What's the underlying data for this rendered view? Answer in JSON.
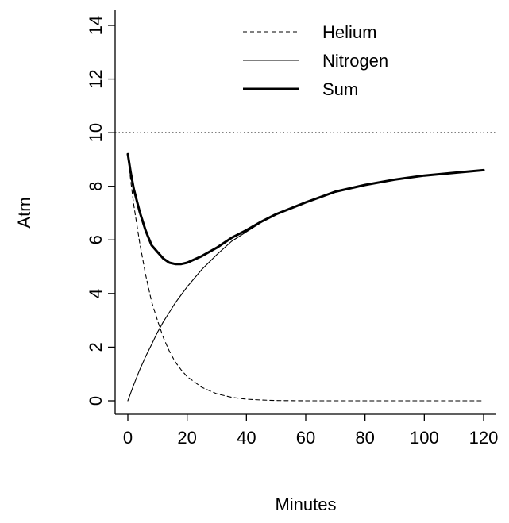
{
  "chart_data": {
    "type": "line",
    "title": "",
    "xlabel": "Minutes",
    "ylabel": "Atm",
    "xlim": [
      0,
      120
    ],
    "ylim": [
      0,
      14
    ],
    "x_ticks": [
      0,
      20,
      40,
      60,
      80,
      100,
      120
    ],
    "y_ticks": [
      0,
      2,
      4,
      6,
      8,
      10,
      12,
      14
    ],
    "grid": false,
    "legend_position": "top-right",
    "reference_lines": [
      {
        "axis": "y",
        "value": 10,
        "style": "dotted"
      }
    ],
    "x": [
      0,
      1,
      2,
      4,
      6,
      8,
      10,
      12,
      14,
      16,
      18,
      20,
      25,
      30,
      35,
      40,
      45,
      50,
      60,
      70,
      80,
      90,
      100,
      110,
      120
    ],
    "series": [
      {
        "name": "Helium",
        "style": "dashed",
        "values": [
          9.2,
          8.2,
          7.3,
          5.9,
          4.7,
          3.7,
          3.0,
          2.35,
          1.85,
          1.45,
          1.15,
          0.9,
          0.5,
          0.26,
          0.13,
          0.06,
          0.03,
          0.01,
          0.0,
          0.0,
          0.0,
          0.0,
          0.0,
          0.0,
          0.0
        ]
      },
      {
        "name": "Nitrogen",
        "style": "solid-thin",
        "values": [
          0.0,
          0.3,
          0.6,
          1.15,
          1.65,
          2.1,
          2.55,
          2.95,
          3.3,
          3.65,
          3.95,
          4.25,
          4.9,
          5.45,
          5.95,
          6.3,
          6.65,
          6.95,
          7.4,
          7.8,
          8.05,
          8.25,
          8.4,
          8.5,
          8.6
        ]
      },
      {
        "name": "Sum",
        "style": "solid-thick",
        "values": [
          9.2,
          8.5,
          7.9,
          7.05,
          6.35,
          5.8,
          5.55,
          5.3,
          5.15,
          5.1,
          5.1,
          5.15,
          5.4,
          5.71,
          6.08,
          6.36,
          6.68,
          6.96,
          7.4,
          7.8,
          8.05,
          8.25,
          8.4,
          8.5,
          8.6
        ]
      }
    ]
  }
}
